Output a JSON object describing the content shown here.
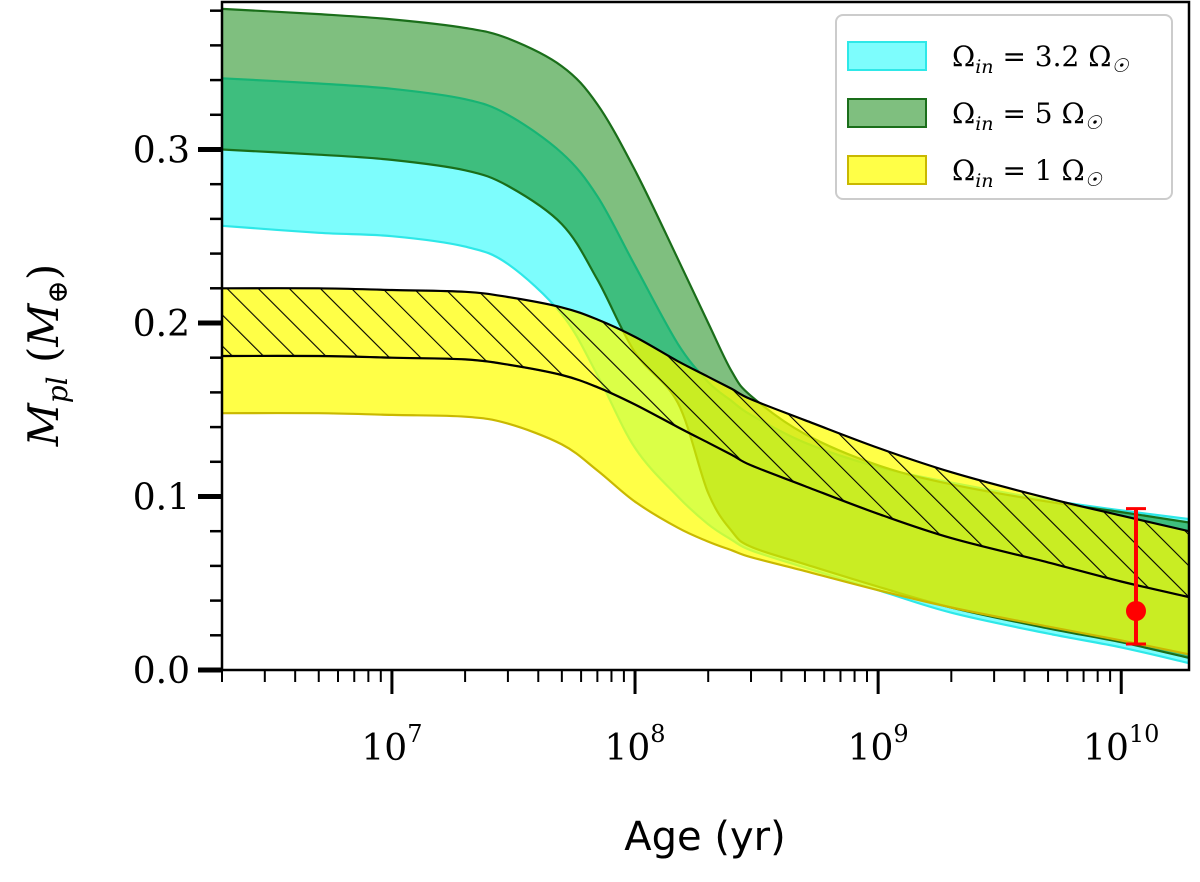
{
  "chart_data": {
    "type": "area",
    "title": "",
    "xlabel": "Age (yr)",
    "ylabel": {
      "symbol": "M",
      "subscript": "pl",
      "unit_symbol": "M",
      "unit_subscript": "⊕"
    },
    "xscale": "log",
    "xlim": [
      2000000,
      19000000000
    ],
    "ylim": [
      0.0,
      0.385
    ],
    "x_ticks": [
      {
        "value": 10000000,
        "base": "10",
        "exp": "7"
      },
      {
        "value": 100000000,
        "base": "10",
        "exp": "8"
      },
      {
        "value": 1000000000,
        "base": "10",
        "exp": "9"
      },
      {
        "value": 10000000000,
        "base": "10",
        "exp": "10"
      }
    ],
    "y_ticks": [
      {
        "value": 0.0,
        "label": "0.0"
      },
      {
        "value": 0.1,
        "label": "0.1"
      },
      {
        "value": 0.2,
        "label": "0.2"
      },
      {
        "value": 0.3,
        "label": "0.3"
      }
    ],
    "x": [
      2000000,
      5000000,
      10000000,
      20000000,
      30000000,
      50000000,
      70000000,
      100000000,
      150000000,
      200000000,
      250000000,
      300000000,
      500000000,
      1000000000,
      2000000000,
      5000000000,
      10000000000,
      19000000000
    ],
    "series": [
      {
        "name": "Ω_in = 3.2 Ω☉",
        "legend_lhs": "Ω",
        "legend_sub": "in",
        "legend_rhs": " = 3.2 Ω",
        "color": "#7dfdfd",
        "edge_color": "#2ee8e8",
        "hatched": false,
        "upper": [
          0.341,
          0.338,
          0.335,
          0.329,
          0.32,
          0.298,
          0.273,
          0.233,
          0.188,
          0.166,
          0.155,
          0.147,
          0.131,
          0.117,
          0.108,
          0.098,
          0.092,
          0.087
        ],
        "lower": [
          0.256,
          0.252,
          0.25,
          0.244,
          0.234,
          0.205,
          0.17,
          0.128,
          0.1,
          0.084,
          0.075,
          0.069,
          0.059,
          0.046,
          0.033,
          0.021,
          0.013,
          0.004
        ]
      },
      {
        "name": "Ω_in = 5 Ω☉",
        "legend_lhs": "Ω",
        "legend_sub": "in",
        "legend_rhs": " = 5 Ω",
        "color": "rgba(0,128,0,0.5)",
        "edge_color": "#1a6e1a",
        "hatched": false,
        "upper": [
          0.381,
          0.378,
          0.375,
          0.37,
          0.364,
          0.348,
          0.326,
          0.288,
          0.237,
          0.2,
          0.172,
          0.158,
          0.136,
          0.118,
          0.107,
          0.097,
          0.091,
          0.085
        ],
        "lower": [
          0.3,
          0.297,
          0.294,
          0.288,
          0.279,
          0.257,
          0.225,
          0.183,
          0.154,
          0.102,
          0.08,
          0.071,
          0.061,
          0.048,
          0.036,
          0.024,
          0.016,
          0.007
        ]
      },
      {
        "name": "Ω_in = 1 Ω☉",
        "legend_lhs": "Ω",
        "legend_sub": "in",
        "legend_rhs": " = 1 Ω",
        "color": "rgba(255,255,0,0.72)",
        "edge_color": "#c9b800",
        "hatched": false,
        "upper": [
          0.181,
          0.181,
          0.18,
          0.179,
          0.176,
          0.17,
          0.163,
          0.153,
          0.14,
          0.131,
          0.124,
          0.118,
          0.106,
          0.09,
          0.076,
          0.062,
          0.051,
          0.042
        ],
        "lower": [
          0.148,
          0.148,
          0.147,
          0.146,
          0.142,
          0.13,
          0.115,
          0.097,
          0.082,
          0.074,
          0.069,
          0.065,
          0.057,
          0.046,
          0.036,
          0.025,
          0.017,
          0.009
        ]
      },
      {
        "name": "Ω_in = 1 Ω☉ (hatched band)",
        "color": "rgba(255,255,0,0.72)",
        "edge_color": "#000000",
        "hatched": true,
        "upper": [
          0.22,
          0.22,
          0.219,
          0.218,
          0.215,
          0.209,
          0.202,
          0.192,
          0.178,
          0.169,
          0.162,
          0.156,
          0.144,
          0.128,
          0.114,
          0.099,
          0.089,
          0.08
        ],
        "lower": [
          0.181,
          0.181,
          0.18,
          0.179,
          0.176,
          0.17,
          0.163,
          0.153,
          0.14,
          0.131,
          0.124,
          0.118,
          0.106,
          0.09,
          0.076,
          0.062,
          0.051,
          0.042
        ]
      }
    ],
    "observation": {
      "x": 11500000000,
      "y": 0.034,
      "yerr_low": 0.015,
      "yerr_high": 0.093,
      "color": "#ff0000"
    },
    "legend": {
      "position": "top-right",
      "order": [
        0,
        1,
        2
      ],
      "sun_symbol": "☉"
    }
  }
}
